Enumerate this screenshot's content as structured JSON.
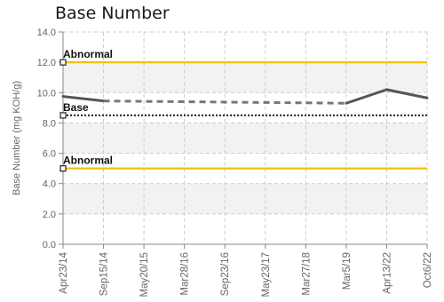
{
  "chart_data": {
    "type": "line",
    "title": "Base Number",
    "ylabel": "Base Number (mg KOH/g)",
    "xlabel": "",
    "ylim": [
      0,
      14
    ],
    "yticks": [
      "0.0",
      "2.0",
      "4.0",
      "6.0",
      "8.0",
      "10.0",
      "12.0",
      "14.0"
    ],
    "categories": [
      "Apr23/14",
      "Sep15/14",
      "May20/15",
      "Mar28/16",
      "Sep23/16",
      "May23/17",
      "Mar27/18",
      "Mar5/19",
      "Apr13/22",
      "Oct6/22"
    ],
    "grid": true,
    "series": [
      {
        "values": [
          9.75,
          9.45,
          null,
          null,
          null,
          null,
          null,
          9.3,
          10.2,
          9.65
        ],
        "dashed_gap": true,
        "color": "#555555"
      }
    ],
    "reference_lines": [
      {
        "label": "Abnormal",
        "value": 12.0,
        "color": "#f2c200",
        "style": "solid"
      },
      {
        "label": "Base",
        "value": 8.5,
        "color": "#333333",
        "style": "dotted"
      },
      {
        "label": "Abnormal",
        "value": 5.0,
        "color": "#f2c200",
        "style": "solid"
      }
    ],
    "colors": {
      "band": "#f2f2f2",
      "grid": "#cccccc",
      "axis": "#888888"
    }
  }
}
